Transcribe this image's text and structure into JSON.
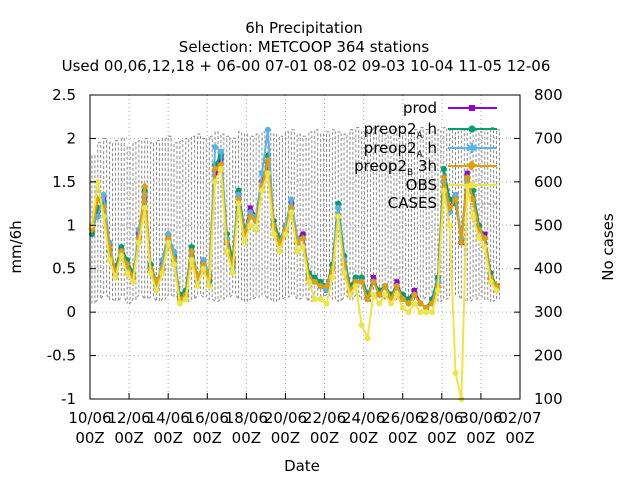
{
  "title": {
    "line1": "6h Precipitation",
    "line2": "Selection: METCOOP     364 stations",
    "line3": "Used  00,06,12,18 + 06-00 07-01 08-02 09-03 10-04 11-05 12-06"
  },
  "chart_data": {
    "type": "line",
    "xlabel": "Date",
    "ylabel": "mm/6h",
    "y2label": "No cases",
    "ylim": [
      -1,
      2.5
    ],
    "y2lim": [
      100,
      800
    ],
    "yticks": [
      "2.5",
      "2",
      "1.5",
      "1",
      "0.5",
      "0",
      "-0.5",
      "-1"
    ],
    "y2ticks": [
      "800",
      "700",
      "600",
      "500",
      "400",
      "300",
      "200",
      "100"
    ],
    "xticks": [
      {
        "date": "10/06",
        "hour": "00Z"
      },
      {
        "date": "12/06",
        "hour": "00Z"
      },
      {
        "date": "14/06",
        "hour": "00Z"
      },
      {
        "date": "16/06",
        "hour": "00Z"
      },
      {
        "date": "18/06",
        "hour": "00Z"
      },
      {
        "date": "20/06",
        "hour": "00Z"
      },
      {
        "date": "22/06",
        "hour": "00Z"
      },
      {
        "date": "24/06",
        "hour": "00Z"
      },
      {
        "date": "26/06",
        "hour": "00Z"
      },
      {
        "date": "28/06",
        "hour": "00Z"
      },
      {
        "date": "30/06",
        "hour": "00Z"
      },
      {
        "date": "02/07",
        "hour": "00Z"
      }
    ],
    "grid": true,
    "legend_position": "top-right",
    "x_days": [
      0.1,
      0.4,
      0.7,
      1.0,
      1.3,
      1.6,
      1.9,
      2.2,
      2.5,
      2.8,
      3.1,
      3.4,
      3.7,
      4.0,
      4.3,
      4.6,
      4.9,
      5.2,
      5.5,
      5.8,
      6.1,
      6.4,
      6.7,
      7.0,
      7.3,
      7.6,
      7.9,
      8.2,
      8.5,
      8.8,
      9.1,
      9.4,
      9.7,
      10.0,
      10.3,
      10.6,
      10.9,
      11.2,
      11.5,
      11.8,
      12.1,
      12.4,
      12.7,
      13.0,
      13.3,
      13.6,
      13.9,
      14.2,
      14.5,
      14.8,
      15.1,
      15.4,
      15.7,
      16.0,
      16.3,
      16.6,
      16.9,
      17.2,
      17.5,
      17.8,
      18.1,
      18.4,
      18.7,
      19.0,
      19.3,
      19.6,
      19.9,
      20.2,
      20.5,
      20.8
    ],
    "series": [
      {
        "name": "prod",
        "color": "#9400d3",
        "marker": "square",
        "values": [
          0.95,
          1.15,
          1.3,
          0.75,
          0.45,
          0.7,
          0.55,
          0.4,
          0.9,
          1.3,
          0.5,
          0.3,
          0.55,
          0.85,
          0.6,
          0.15,
          0.2,
          0.7,
          0.35,
          0.6,
          0.4,
          1.6,
          1.75,
          0.8,
          0.55,
          1.35,
          0.9,
          1.2,
          1.1,
          1.5,
          1.7,
          1.0,
          0.8,
          1.0,
          1.25,
          0.85,
          0.9,
          0.4,
          0.35,
          0.3,
          0.25,
          0.5,
          1.1,
          0.6,
          0.25,
          0.35,
          0.35,
          0.15,
          0.4,
          0.2,
          0.3,
          0.15,
          0.35,
          0.15,
          0.15,
          0.25,
          0.1,
          0.05,
          0.1,
          0.35,
          1.5,
          1.2,
          1.35,
          0.8,
          1.6,
          1.3,
          0.95,
          0.9,
          0.4,
          0.3
        ]
      },
      {
        "name": "preop2 ₐ h",
        "color": "#009e73",
        "marker": "circle",
        "values": [
          0.9,
          1.2,
          1.25,
          0.7,
          0.5,
          0.75,
          0.6,
          0.45,
          0.85,
          1.4,
          0.55,
          0.35,
          0.5,
          0.8,
          0.65,
          0.2,
          0.25,
          0.75,
          0.4,
          0.55,
          0.35,
          1.7,
          1.8,
          0.9,
          0.6,
          1.4,
          0.95,
          1.1,
          1.05,
          1.4,
          1.8,
          1.05,
          0.85,
          0.95,
          1.2,
          0.8,
          0.85,
          0.45,
          0.4,
          0.35,
          0.3,
          0.55,
          1.25,
          0.65,
          0.3,
          0.4,
          0.4,
          0.2,
          0.35,
          0.25,
          0.3,
          0.2,
          0.3,
          0.2,
          0.15,
          0.2,
          0.1,
          0.05,
          0.15,
          0.4,
          1.65,
          1.3,
          1.25,
          0.85,
          1.55,
          1.4,
          1.0,
          0.85,
          0.45,
          0.3
        ]
      },
      {
        "name": "preop2 ₐ h",
        "color": "#56b4e9",
        "marker": "star",
        "values": [
          1.0,
          1.1,
          1.35,
          0.8,
          0.45,
          0.7,
          0.5,
          0.4,
          0.95,
          1.35,
          0.5,
          0.3,
          0.6,
          0.9,
          0.7,
          0.15,
          0.2,
          0.7,
          0.35,
          0.6,
          0.45,
          1.9,
          1.85,
          0.85,
          0.5,
          1.35,
          0.9,
          1.15,
          1.1,
          1.6,
          2.1,
          1.0,
          0.8,
          1.0,
          1.3,
          0.85,
          0.85,
          0.4,
          0.35,
          0.3,
          0.25,
          0.5,
          1.2,
          0.6,
          0.25,
          0.35,
          0.35,
          0.15,
          0.35,
          0.2,
          0.3,
          0.15,
          0.3,
          0.15,
          0.1,
          0.2,
          0.1,
          0.05,
          0.1,
          0.35,
          1.5,
          1.15,
          1.35,
          0.85,
          1.5,
          1.3,
          0.95,
          0.85,
          0.4,
          0.25
        ]
      },
      {
        "name": "preop2 ʙ 3h",
        "color": "#e69f00",
        "marker": "diamond",
        "values": [
          0.95,
          1.3,
          1.2,
          0.75,
          0.45,
          0.7,
          0.55,
          0.4,
          0.85,
          1.45,
          0.5,
          0.35,
          0.5,
          0.85,
          0.6,
          0.15,
          0.2,
          0.7,
          0.4,
          0.55,
          0.4,
          1.65,
          1.7,
          0.8,
          0.55,
          1.3,
          0.9,
          1.1,
          1.05,
          1.45,
          1.75,
          1.0,
          0.8,
          0.95,
          1.2,
          0.8,
          0.85,
          0.4,
          0.35,
          0.3,
          0.3,
          0.5,
          1.1,
          0.55,
          0.25,
          0.35,
          0.35,
          0.15,
          0.35,
          0.2,
          0.3,
          0.15,
          0.3,
          0.15,
          0.1,
          0.2,
          0.1,
          0.05,
          0.1,
          0.3,
          1.55,
          1.2,
          1.3,
          0.8,
          1.55,
          1.3,
          0.95,
          0.85,
          0.4,
          0.3
        ]
      },
      {
        "name": "OBS",
        "color": "#f0e442",
        "marker": "circle",
        "values": [
          1.0,
          1.5,
          1.1,
          0.6,
          0.4,
          0.65,
          0.45,
          0.35,
          0.8,
          1.2,
          0.45,
          0.25,
          0.45,
          0.8,
          0.55,
          0.1,
          0.15,
          0.6,
          0.3,
          0.5,
          0.3,
          1.5,
          1.65,
          0.7,
          0.45,
          1.25,
          0.8,
          1.0,
          0.95,
          1.4,
          1.6,
          0.9,
          0.7,
          0.9,
          1.15,
          0.7,
          0.75,
          0.35,
          0.15,
          0.15,
          0.1,
          0.4,
          1.1,
          0.45,
          0.2,
          0.3,
          -0.15,
          -0.3,
          0.2,
          0.1,
          0.2,
          0.1,
          0.2,
          0.05,
          0.0,
          0.1,
          0.0,
          0.0,
          0.0,
          0.25,
          1.4,
          1.0,
          -0.7,
          -1.0,
          1.45,
          1.1,
          0.85,
          0.75,
          0.35,
          0.25
        ]
      },
      {
        "name": "CASES",
        "color": "#888888",
        "marker": "none",
        "axis": "y2",
        "values_min": [
          320,
          330,
          340,
          330,
          325,
          335,
          320,
          330,
          340,
          330,
          335,
          325,
          330,
          340,
          335,
          330,
          325,
          330,
          340,
          335,
          330,
          325,
          330,
          335,
          340,
          330,
          325,
          330,
          335,
          340,
          330,
          325,
          330,
          335,
          340,
          330,
          335,
          325,
          330,
          335,
          340,
          330,
          325,
          335,
          330,
          340,
          330,
          325,
          330,
          335,
          330,
          325,
          330,
          335,
          330,
          325,
          330,
          335,
          330,
          325,
          330,
          335,
          340,
          330,
          325,
          330,
          335,
          330,
          325,
          330
        ],
        "values_max": [
          660,
          690,
          700,
          690,
          695,
          700,
          680,
          690,
          695,
          700,
          690,
          695,
          700,
          705,
          690,
          695,
          700,
          705,
          710,
          700,
          705,
          715,
          710,
          705,
          700,
          715,
          710,
          705,
          710,
          715,
          720,
          710,
          705,
          715,
          720,
          710,
          705,
          715,
          720,
          710,
          715,
          720,
          715,
          710,
          720,
          725,
          715,
          720,
          725,
          720,
          715,
          720,
          725,
          720,
          715,
          720,
          725,
          720,
          715,
          720,
          725,
          720,
          715,
          720,
          725,
          720,
          715,
          720,
          725,
          720
        ]
      }
    ]
  },
  "legend_labels": {
    "prod": "prod",
    "preop2_a_main": "preop2",
    "preop2_a_sub": "A",
    "preop2_a_tail": "h",
    "preop2_b_main": "preop2",
    "preop2_b_sub": "B",
    "preop2_b_tail": "3h",
    "obs": "OBS",
    "cases": "CASES"
  }
}
